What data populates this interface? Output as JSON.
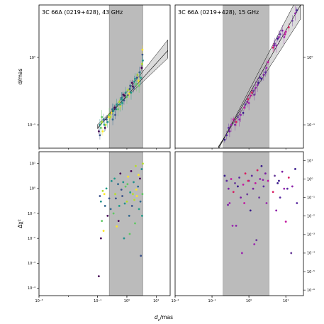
{
  "colors": {
    "shade": "#9e9e9e",
    "palette_43": [
      "#440154",
      "#3b528b",
      "#21918c",
      "#5ec962",
      "#b5de2b",
      "#fde725",
      "#31688e",
      "#1f9e89"
    ],
    "palette_15": [
      "#3a1a8c",
      "#5b2aa0",
      "#7b1fa2",
      "#9c27b0",
      "#c2189f",
      "#d81b60",
      "#6a3d9a",
      "#8e24aa"
    ]
  },
  "chart_data": [
    {
      "id": "top-left",
      "type": "scatter",
      "title": "3C 66A (0219+428), 43 GHz",
      "xlabel": "",
      "ylabel": "d/mas",
      "xscale": "log",
      "yscale": "log",
      "xlim": [
        0.001,
        30
      ],
      "ylim": [
        0.045,
        6
      ],
      "xticks": [],
      "yticks": [
        {
          "v": 0.1,
          "label": "10⁻¹"
        },
        {
          "v": 1,
          "label": "10⁰"
        }
      ],
      "ytick_side": "left",
      "shaded_x": [
        0.25,
        3.5
      ],
      "fit": {
        "type": "power",
        "x_range": [
          0.1,
          25
        ],
        "a": 0.27,
        "b": 0.48,
        "band": [
          0.26,
          0.31
        ],
        "band_b": [
          0.55,
          0.41
        ]
      },
      "palette": "palette_43",
      "points": [
        [
          0.11,
          0.08
        ],
        [
          0.12,
          0.07
        ],
        [
          0.12,
          0.1
        ],
        [
          0.13,
          0.09
        ],
        [
          0.14,
          0.11
        ],
        [
          0.15,
          0.08
        ],
        [
          0.16,
          0.12
        ],
        [
          0.17,
          0.1
        ],
        [
          0.18,
          0.09
        ],
        [
          0.2,
          0.12
        ],
        [
          0.22,
          0.11
        ],
        [
          0.25,
          0.14
        ],
        [
          0.27,
          0.13
        ],
        [
          0.3,
          0.15
        ],
        [
          0.33,
          0.12
        ],
        [
          0.35,
          0.16
        ],
        [
          0.38,
          0.18
        ],
        [
          0.4,
          0.14
        ],
        [
          0.45,
          0.2
        ],
        [
          0.5,
          0.17
        ],
        [
          0.55,
          0.22
        ],
        [
          0.6,
          0.19
        ],
        [
          0.65,
          0.25
        ],
        [
          0.7,
          0.21
        ],
        [
          0.75,
          0.28
        ],
        [
          0.8,
          0.23
        ],
        [
          0.9,
          0.3
        ],
        [
          1.0,
          0.26
        ],
        [
          1.1,
          0.33
        ],
        [
          1.2,
          0.29
        ],
        [
          1.3,
          0.38
        ],
        [
          1.4,
          0.3
        ],
        [
          1.5,
          0.42
        ],
        [
          1.7,
          0.35
        ],
        [
          1.9,
          0.48
        ],
        [
          2.1,
          0.4
        ],
        [
          2.3,
          0.55
        ],
        [
          2.5,
          0.45
        ],
        [
          2.7,
          0.6
        ],
        [
          3.0,
          0.5
        ],
        [
          3.2,
          0.7
        ],
        [
          3.4,
          1.1
        ],
        [
          3.5,
          0.9
        ],
        [
          0.14,
          0.13
        ],
        [
          0.19,
          0.1
        ],
        [
          0.24,
          0.13
        ],
        [
          0.42,
          0.17
        ],
        [
          0.58,
          0.2
        ],
        [
          0.85,
          0.27
        ],
        [
          1.25,
          0.34
        ],
        [
          1.8,
          0.44
        ],
        [
          2.6,
          0.38
        ],
        [
          3.3,
          0.8
        ],
        [
          3.4,
          1.3
        ],
        [
          0.32,
          0.17
        ],
        [
          0.68,
          0.24
        ],
        [
          1.6,
          0.37
        ],
        [
          2.2,
          0.5
        ]
      ]
    },
    {
      "id": "top-right",
      "type": "scatter",
      "title": "3C 66A (0219+428), 15 GHz",
      "xlabel": "",
      "ylabel": "",
      "xscale": "log",
      "yscale": "log",
      "xlim": [
        0.01,
        30
      ],
      "ylim": [
        0.045,
        6
      ],
      "xticks": [],
      "yticks": [
        {
          "v": 0.1,
          "label": "10⁻¹"
        },
        {
          "v": 1,
          "label": "10⁰"
        }
      ],
      "ytick_side": "right",
      "shaded_x": [
        0.2,
        3.5
      ],
      "fit": {
        "type": "power",
        "x_range": [
          0.15,
          25
        ],
        "a": 0.28,
        "b": 0.95,
        "band": [
          0.24,
          0.32
        ],
        "band_b": [
          1.05,
          0.85
        ]
      },
      "palette": "palette_15",
      "points": [
        [
          0.22,
          0.06
        ],
        [
          0.25,
          0.07
        ],
        [
          0.3,
          0.08
        ],
        [
          0.33,
          0.1
        ],
        [
          0.38,
          0.12
        ],
        [
          0.45,
          0.11
        ],
        [
          0.5,
          0.13
        ],
        [
          0.6,
          0.14
        ],
        [
          0.7,
          0.15
        ],
        [
          0.8,
          0.2
        ],
        [
          0.9,
          0.22
        ],
        [
          1.0,
          0.21
        ],
        [
          1.1,
          0.27
        ],
        [
          1.2,
          0.3
        ],
        [
          1.4,
          0.28
        ],
        [
          1.5,
          0.35
        ],
        [
          1.8,
          0.42
        ],
        [
          2.0,
          0.5
        ],
        [
          2.5,
          0.55
        ],
        [
          3.0,
          0.7
        ],
        [
          3.3,
          0.85
        ],
        [
          4.5,
          1.4
        ],
        [
          5.0,
          1.6
        ],
        [
          5.5,
          1.5
        ],
        [
          6.0,
          1.9
        ],
        [
          7.0,
          2.2
        ],
        [
          8.0,
          2.5
        ],
        [
          9.0,
          2.0
        ],
        [
          10.0,
          2.4
        ],
        [
          12.0,
          2.8
        ],
        [
          15.0,
          3.5
        ],
        [
          18.0,
          4.5
        ],
        [
          20.0,
          5.0
        ],
        [
          0.28,
          0.09
        ],
        [
          0.42,
          0.1
        ],
        [
          0.55,
          0.12
        ],
        [
          0.75,
          0.18
        ],
        [
          0.95,
          0.24
        ],
        [
          1.3,
          0.32
        ],
        [
          1.7,
          0.39
        ],
        [
          2.2,
          0.48
        ],
        [
          2.8,
          0.6
        ],
        [
          4.8,
          1.5
        ],
        [
          6.5,
          2.0
        ],
        [
          9.5,
          2.2
        ]
      ]
    },
    {
      "id": "bottom-left",
      "type": "scatter",
      "title": "",
      "xlabel": "",
      "ylabel": "Δχ²",
      "xscale": "log",
      "yscale": "log",
      "xlim": [
        0.001,
        30
      ],
      "ylim": [
        5e-05,
        30
      ],
      "xticks": [
        {
          "v": 0.001,
          "label": "10⁻³"
        },
        {
          "v": 0.1,
          "label": "10⁻¹"
        },
        {
          "v": 1,
          "label": "10⁰"
        },
        {
          "v": 10,
          "label": "10¹"
        }
      ],
      "yticks": [
        {
          "v": 0.0001,
          "label": "10⁻⁴"
        },
        {
          "v": 0.001,
          "label": "10⁻³"
        },
        {
          "v": 0.01,
          "label": "10⁻²"
        },
        {
          "v": 0.1,
          "label": "10⁻¹"
        },
        {
          "v": 1,
          "label": "10⁰"
        },
        {
          "v": 10,
          "label": "10¹"
        }
      ],
      "ytick_side": "left",
      "shaded_x": [
        0.25,
        3.5
      ],
      "fit": null,
      "palette": "palette_43",
      "points": [
        [
          0.11,
          0.0003
        ],
        [
          0.12,
          0.5
        ],
        [
          0.13,
          0.3
        ],
        [
          0.14,
          0.05
        ],
        [
          0.15,
          0.8
        ],
        [
          0.16,
          0.02
        ],
        [
          0.18,
          0.2
        ],
        [
          0.2,
          1.0
        ],
        [
          0.22,
          0.08
        ],
        [
          0.25,
          0.4
        ],
        [
          0.3,
          2.0
        ],
        [
          0.35,
          0.1
        ],
        [
          0.4,
          0.6
        ],
        [
          0.45,
          0.03
        ],
        [
          0.5,
          1.5
        ],
        [
          0.55,
          0.2
        ],
        [
          0.6,
          4.0
        ],
        [
          0.7,
          0.5
        ],
        [
          0.8,
          0.01
        ],
        [
          0.9,
          1.2
        ],
        [
          1.0,
          0.3
        ],
        [
          1.1,
          3.0
        ],
        [
          1.2,
          0.08
        ],
        [
          1.3,
          0.7
        ],
        [
          1.4,
          5.0
        ],
        [
          1.5,
          0.2
        ],
        [
          1.7,
          1.8
        ],
        [
          1.9,
          0.04
        ],
        [
          2.0,
          8.0
        ],
        [
          2.2,
          0.5
        ],
        [
          2.4,
          1.2
        ],
        [
          2.6,
          0.15
        ],
        [
          2.8,
          2.5
        ],
        [
          3.0,
          0.002
        ],
        [
          3.2,
          6.0
        ],
        [
          3.4,
          0.6
        ],
        [
          3.5,
          10.0
        ],
        [
          0.17,
          0.6
        ],
        [
          0.28,
          0.15
        ],
        [
          0.38,
          2.5
        ],
        [
          0.52,
          0.05
        ],
        [
          0.65,
          0.9
        ],
        [
          0.85,
          0.25
        ],
        [
          1.05,
          1.5
        ],
        [
          1.6,
          0.6
        ],
        [
          2.1,
          0.9
        ],
        [
          2.9,
          0.3
        ],
        [
          3.3,
          0.08
        ],
        [
          0.13,
          0.01
        ],
        [
          0.42,
          0.4
        ],
        [
          0.75,
          1.8
        ],
        [
          1.25,
          0.015
        ],
        [
          1.8,
          0.35
        ],
        [
          2.5,
          3.5
        ]
      ]
    },
    {
      "id": "bottom-right",
      "type": "scatter",
      "title": "",
      "xlabel": "",
      "ylabel": "",
      "xscale": "log",
      "yscale": "log",
      "xlim": [
        0.01,
        30
      ],
      "ylim": [
        5e-07,
        30
      ],
      "xticks": [
        {
          "v": 0.01,
          "label": "10⁻²"
        },
        {
          "v": 0.1,
          "label": "10⁻¹"
        },
        {
          "v": 1,
          "label": "10⁰"
        },
        {
          "v": 10,
          "label": "10¹"
        }
      ],
      "yticks": [
        {
          "v": 1e-06,
          "label": "10⁻⁶"
        },
        {
          "v": 1e-05,
          "label": "10⁻⁵"
        },
        {
          "v": 0.0001,
          "label": "10⁻⁴"
        },
        {
          "v": 0.001,
          "label": "10⁻³"
        },
        {
          "v": 0.01,
          "label": "10⁻²"
        },
        {
          "v": 0.1,
          "label": "10⁻¹"
        },
        {
          "v": 1,
          "label": "10⁰"
        },
        {
          "v": 10,
          "label": "10¹"
        }
      ],
      "ytick_side": "right",
      "shaded_x": [
        0.2,
        3.5
      ],
      "fit": null,
      "palette": "palette_15",
      "points": [
        [
          0.22,
          1.5
        ],
        [
          0.25,
          0.8
        ],
        [
          0.28,
          0.3
        ],
        [
          0.3,
          0.05
        ],
        [
          0.33,
          1.0
        ],
        [
          0.38,
          0.2
        ],
        [
          0.42,
          0.6
        ],
        [
          0.45,
          0.003
        ],
        [
          0.5,
          0.4
        ],
        [
          0.55,
          1.2
        ],
        [
          0.6,
          0.1
        ],
        [
          0.65,
          0.0001
        ],
        [
          0.7,
          0.5
        ],
        [
          0.8,
          2.0
        ],
        [
          0.9,
          0.15
        ],
        [
          1.0,
          0.8
        ],
        [
          1.1,
          0.02
        ],
        [
          1.2,
          1.5
        ],
        [
          1.3,
          0.3
        ],
        [
          1.4,
          0.0003
        ],
        [
          1.5,
          0.6
        ],
        [
          1.7,
          3.0
        ],
        [
          1.9,
          0.1
        ],
        [
          2.0,
          1.0
        ],
        [
          2.2,
          5.0
        ],
        [
          2.5,
          0.4
        ],
        [
          2.8,
          2.0
        ],
        [
          3.0,
          0.05
        ],
        [
          3.3,
          0.8
        ],
        [
          4.5,
          0.2
        ],
        [
          5.0,
          1.5
        ],
        [
          5.5,
          0.02
        ],
        [
          6.0,
          0.6
        ],
        [
          7.0,
          0.1
        ],
        [
          8.0,
          2.5
        ],
        [
          9.0,
          0.3
        ],
        [
          10.0,
          0.005
        ],
        [
          12.0,
          1.2
        ],
        [
          14.0,
          0.0001
        ],
        [
          15.0,
          0.4
        ],
        [
          18.0,
          3.5
        ],
        [
          20.0,
          0.05
        ],
        [
          0.27,
          0.04
        ],
        [
          0.36,
          0.003
        ],
        [
          0.75,
          0.05
        ],
        [
          0.95,
          0.8
        ],
        [
          1.6,
          0.0005
        ],
        [
          2.4,
          0.9
        ],
        [
          6.5,
          0.8
        ],
        [
          11.0,
          0.3
        ]
      ]
    }
  ],
  "shared_xlabel": "d_c/mas"
}
